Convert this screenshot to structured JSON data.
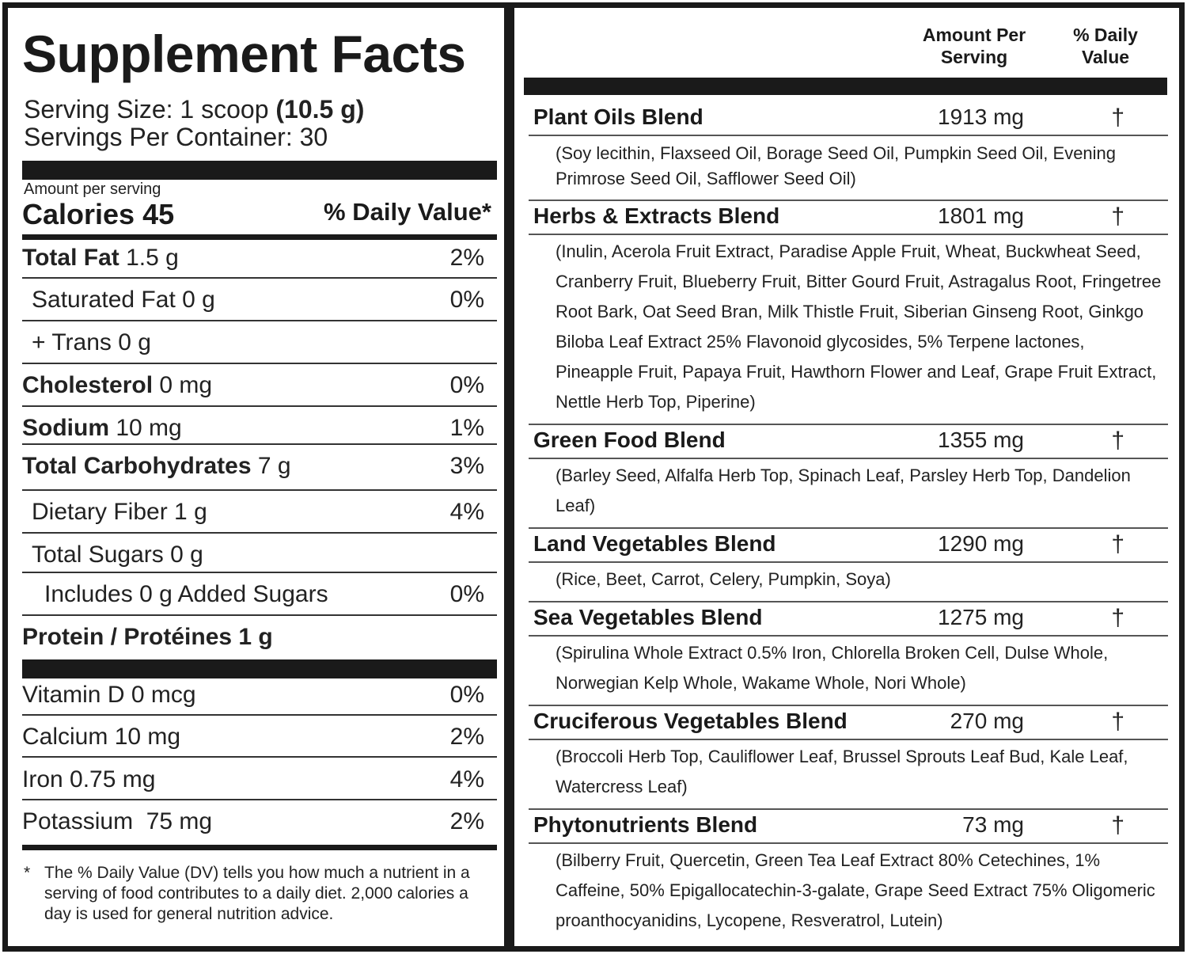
{
  "left": {
    "title": "Supplement Facts",
    "serving_size_label": "Serving Size: 1 scoop ",
    "serving_size_weight": "(10.5 g)",
    "servings_per_container": "Servings Per Container: 30",
    "amount_per_serving": "Amount per serving",
    "calories": "Calories 45",
    "daily_value_header": "% Daily Value*",
    "nutrients": [
      {
        "bold": "Total Fat",
        "label": " 1.5 g",
        "pct": "2%"
      },
      {
        "bold": "",
        "label": "Saturated Fat 0 g",
        "pct": "0%"
      },
      {
        "bold": "",
        "label": "+ Trans 0 g",
        "pct": ""
      },
      {
        "bold": "Cholesterol",
        "label": " 0 mg",
        "pct": "0%"
      },
      {
        "bold": "Sodium",
        "label": " 10 mg",
        "pct": "1%"
      },
      {
        "bold": "Total Carbohydrates",
        "label": " 7 g",
        "pct": "3%"
      },
      {
        "bold": "",
        "label": "Dietary Fiber 1 g",
        "pct": "4%"
      },
      {
        "bold": "",
        "label": "Total Sugars 0 g",
        "pct": ""
      },
      {
        "bold": "",
        "label": "Includes 0 g Added Sugars",
        "pct": "0%"
      },
      {
        "bold": "Protein / Protéines 1 g",
        "label": "",
        "pct": ""
      }
    ],
    "minerals": [
      {
        "label": "Vitamin D 0 mcg",
        "pct": "0%"
      },
      {
        "label": "Calcium 10 mg",
        "pct": "2%"
      },
      {
        "label": "Iron 0.75 mg",
        "pct": "4%"
      },
      {
        "label": "Potassium  75 mg",
        "pct": "2%"
      }
    ],
    "footnote_star": "*",
    "footnote": "The % Daily Value (DV) tells you how much a nutrient in a serving of food contributes to a daily diet. 2,000 calories a day is used for general nutrition advice."
  },
  "right": {
    "amount_header_1": "Amount Per",
    "amount_header_2": "Serving",
    "dv_header_1": "% Daily",
    "dv_header_2": "Value",
    "blends": [
      {
        "name": "Plant Oils Blend",
        "amount": "1913 mg",
        "dv": "†",
        "desc": "(Soy lecithin, Flaxseed Oil, Borage Seed Oil, Pumpkin Seed Oil, Evening Primrose Seed Oil, Safflower Seed Oil)"
      },
      {
        "name": "Herbs & Extracts Blend",
        "amount": "1801 mg",
        "dv": "†",
        "desc": "(Inulin, Acerola Fruit Extract, Paradise Apple Fruit, Wheat, Buckwheat Seed, Cranberry Fruit, Blueberry Fruit, Bitter Gourd Fruit, Astragalus Root, Fringetree Root Bark, Oat Seed Bran, Milk Thistle Fruit, Siberian Ginseng Root, Ginkgo Biloba Leaf Extract 25% Flavonoid glycosides, 5% Terpene lactones, Pineapple Fruit, Papaya Fruit, Hawthorn Flower and Leaf, Grape Fruit Extract, Nettle Herb Top, Piperine)"
      },
      {
        "name": "Green Food Blend",
        "amount": "1355 mg",
        "dv": "†",
        "desc": "(Barley Seed, Alfalfa Herb Top, Spinach Leaf, Parsley Herb Top, Dandelion Leaf)"
      },
      {
        "name": "Land Vegetables Blend",
        "amount": "1290 mg",
        "dv": "†",
        "desc": "(Rice, Beet, Carrot, Celery, Pumpkin, Soya)"
      },
      {
        "name": "Sea Vegetables Blend",
        "amount": "1275 mg",
        "dv": "†",
        "desc": "(Spirulina Whole Extract 0.5% Iron, Chlorella Broken Cell, Dulse Whole, Norwegian Kelp Whole, Wakame Whole, Nori Whole)"
      },
      {
        "name": "Cruciferous Vegetables Blend",
        "amount": "270 mg",
        "dv": "†",
        "desc": "(Broccoli Herb Top, Cauliflower Leaf, Brussel Sprouts Leaf Bud, Kale Leaf, Watercress Leaf)"
      },
      {
        "name": "Phytonutrients Blend",
        "amount": "73 mg",
        "dv": "†",
        "desc": "(Bilberry Fruit, Quercetin, Green Tea Leaf Extract 80% Cetechines, 1% Caffeine, 50% Epigallocatechin-3-galate, Grape Seed Extract 75% Oligomeric proanthocyanidins, Lycopene, Resveratrol, Lutein)"
      }
    ]
  }
}
